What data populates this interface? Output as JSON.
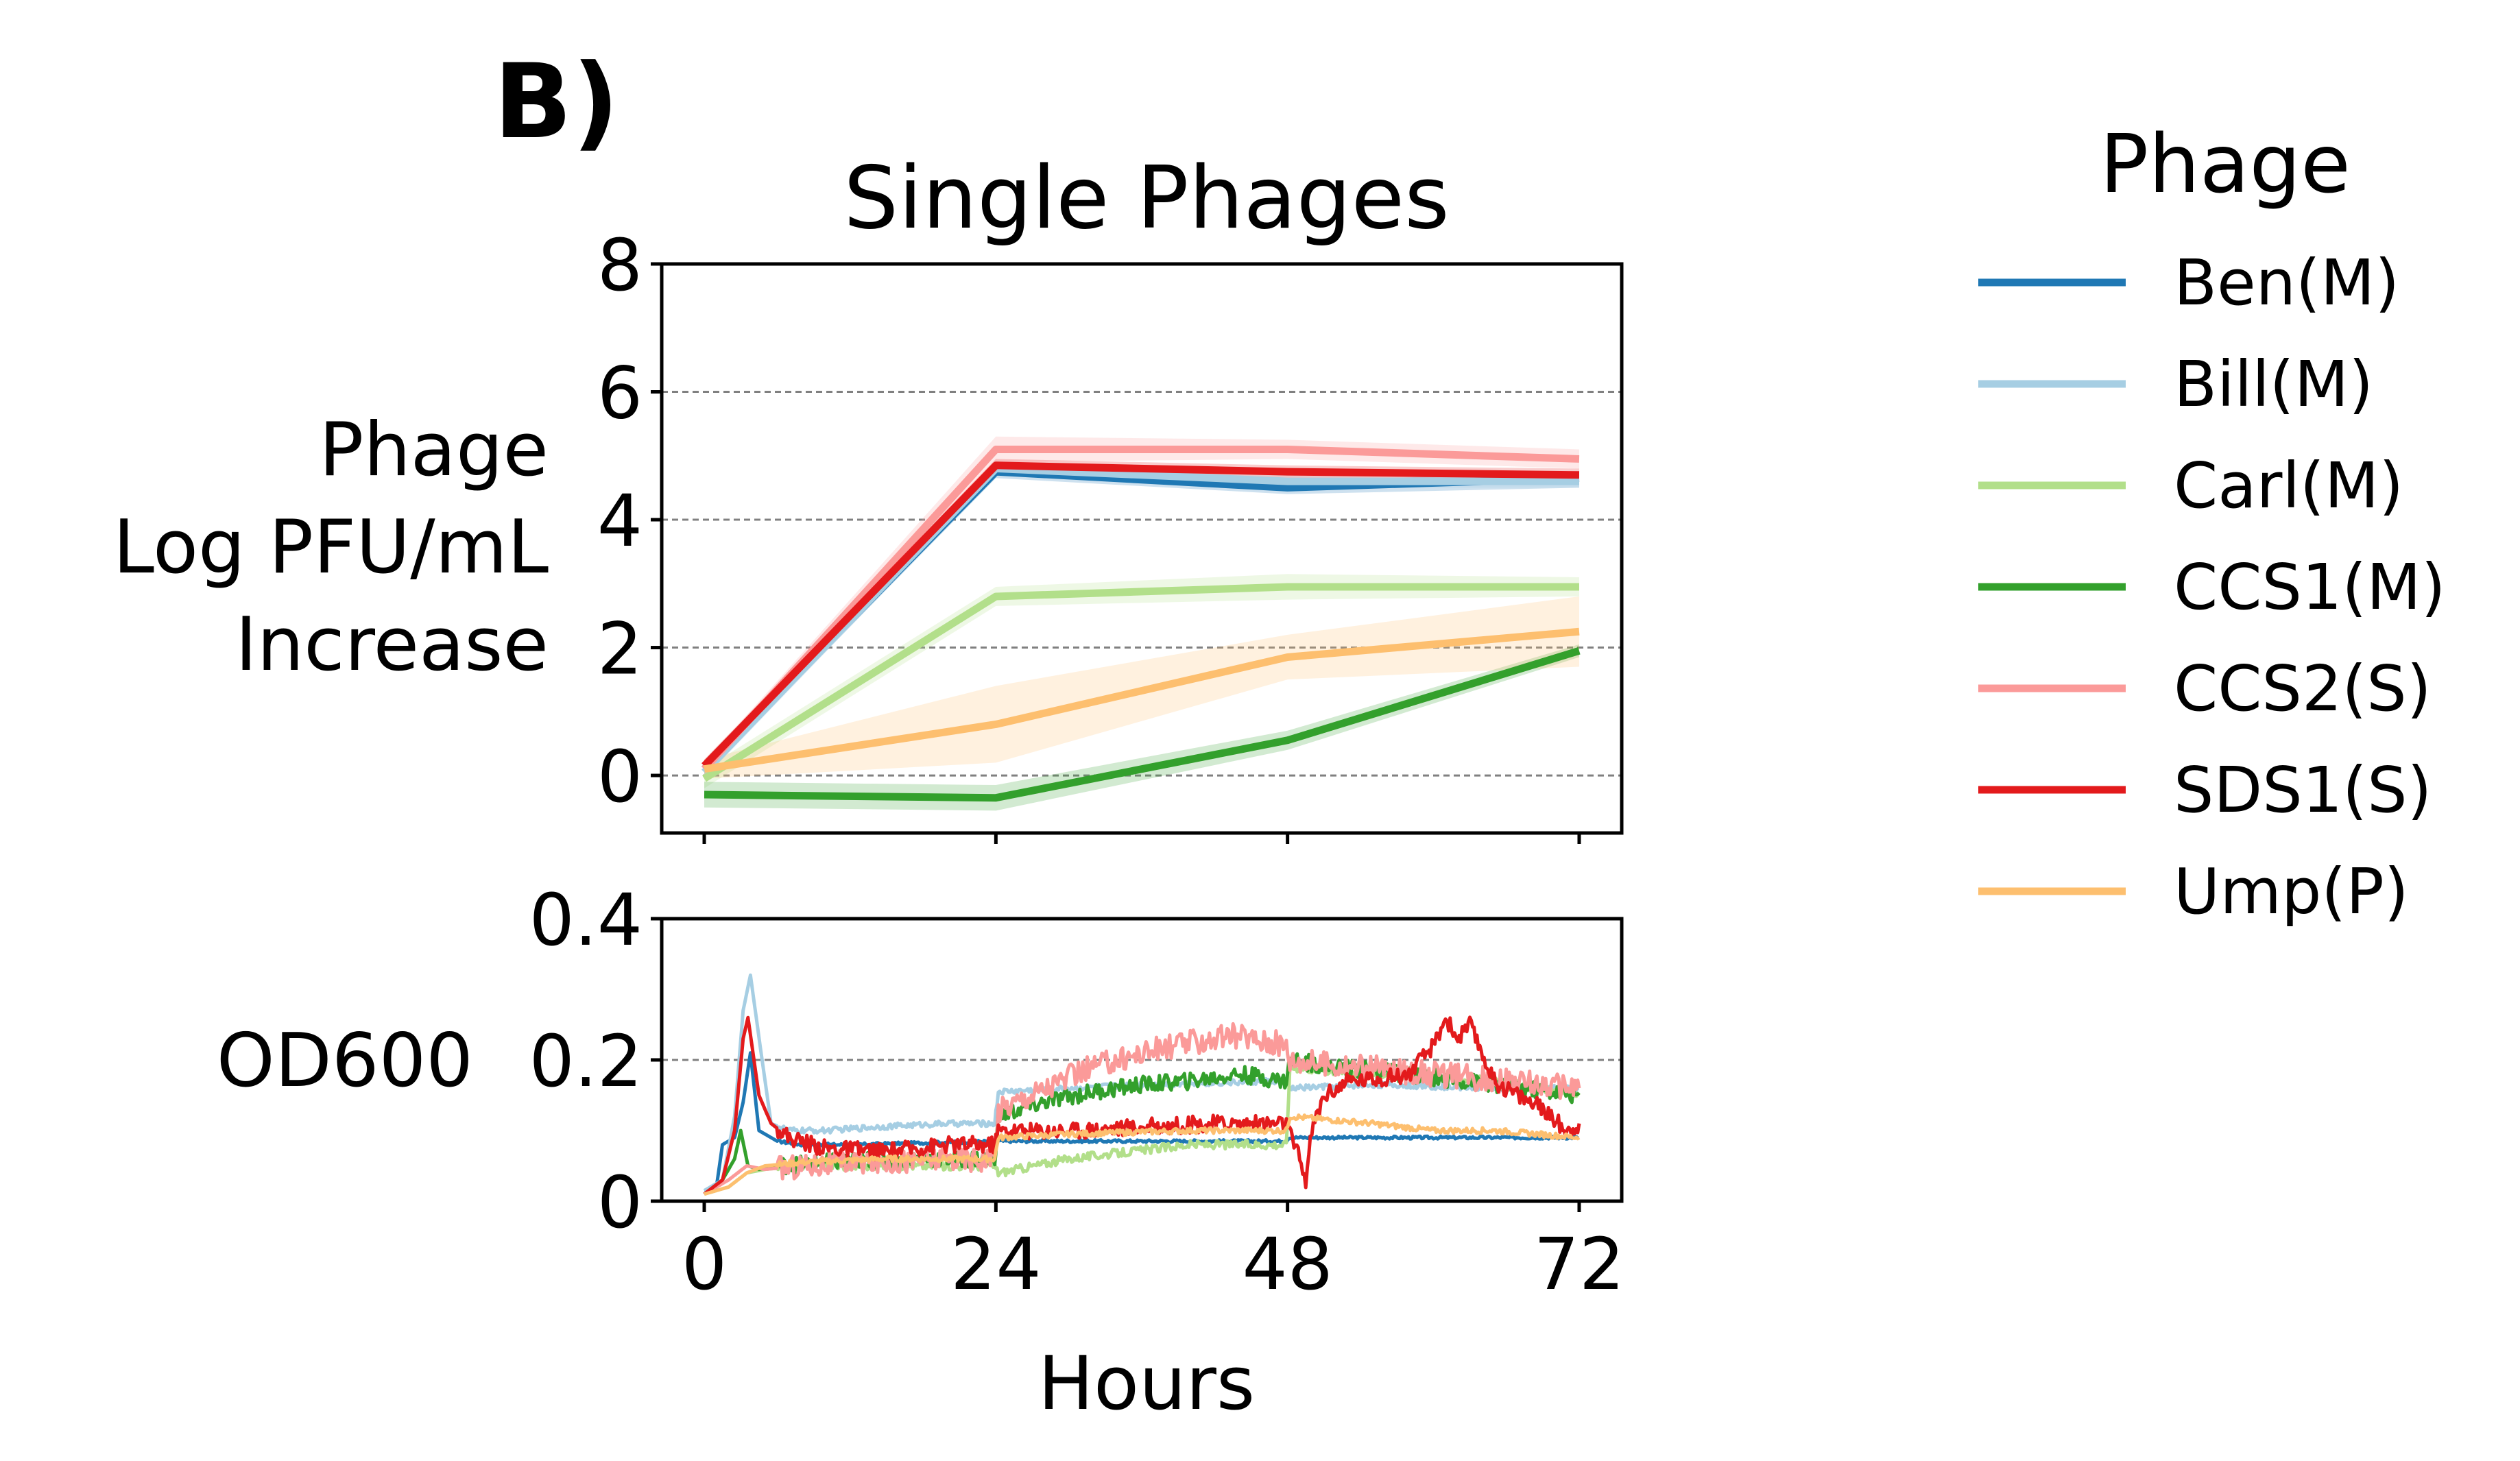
{
  "panel_label": "B)",
  "chart_data": [
    {
      "type": "line",
      "title": "Single Phages",
      "ylabel_lines": [
        "Phage",
        "Log PFU/mL",
        "Increase"
      ],
      "xlabel": "",
      "x": [
        0,
        24,
        48,
        72
      ],
      "xlim": [
        -3.5,
        75.5
      ],
      "ylim": [
        -0.9,
        8
      ],
      "yticks": [
        0,
        2,
        4,
        6,
        8
      ],
      "ytick_labels": [
        "0",
        "2",
        "4",
        "6",
        "8"
      ],
      "grid_lines": [
        0,
        2,
        4,
        6
      ],
      "grid": "horizontal dashed",
      "series": [
        {
          "name": "Ben(M)",
          "color": "#1f78b4",
          "values": [
            0.1,
            4.75,
            4.5,
            4.65
          ],
          "band_lower": [
            0.0,
            4.65,
            4.4,
            4.5
          ],
          "band_upper": [
            0.2,
            4.85,
            4.6,
            4.75
          ]
        },
        {
          "name": "Bill(M)",
          "color": "#a6cee3",
          "values": [
            0.05,
            4.8,
            4.6,
            4.6
          ],
          "band_lower": [
            -0.05,
            4.7,
            4.5,
            4.5
          ],
          "band_upper": [
            0.15,
            4.9,
            4.7,
            4.7
          ]
        },
        {
          "name": "Carl(M)",
          "color": "#b2df8a",
          "values": [
            -0.05,
            2.8,
            2.95,
            2.95
          ],
          "band_lower": [
            -0.2,
            2.65,
            2.75,
            2.8
          ],
          "band_upper": [
            0.1,
            2.95,
            3.15,
            3.1
          ]
        },
        {
          "name": "CCS1(M)",
          "color": "#33a02c",
          "values": [
            -0.3,
            -0.35,
            0.55,
            1.95
          ],
          "band_lower": [
            -0.5,
            -0.55,
            0.4,
            1.85
          ],
          "band_upper": [
            -0.1,
            -0.15,
            0.7,
            2.05
          ]
        },
        {
          "name": "CCS2(S)",
          "color": "#fb9a99",
          "values": [
            0.1,
            5.1,
            5.1,
            4.95
          ],
          "band_lower": [
            0.0,
            4.9,
            4.95,
            4.8
          ],
          "band_upper": [
            0.2,
            5.3,
            5.25,
            5.1
          ]
        },
        {
          "name": "SDS1(S)",
          "color": "#e31a1c",
          "values": [
            0.15,
            4.85,
            4.75,
            4.7
          ],
          "band_lower": [
            0.05,
            4.75,
            4.65,
            4.6
          ],
          "band_upper": [
            0.25,
            4.95,
            4.85,
            4.8
          ]
        },
        {
          "name": "Ump(P)",
          "color": "#fdbf6f",
          "values": [
            0.1,
            0.8,
            1.85,
            2.25
          ],
          "band_lower": [
            -0.05,
            0.2,
            1.5,
            1.7
          ],
          "band_upper": [
            0.25,
            1.4,
            2.2,
            2.8
          ]
        }
      ]
    },
    {
      "type": "line",
      "title": "",
      "ylabel": "OD600",
      "xlabel": "Hours",
      "xlim": [
        -3.5,
        75.5
      ],
      "xticks": [
        0,
        24,
        48,
        72
      ],
      "xtick_labels": [
        "0",
        "24",
        "48",
        "72"
      ],
      "ylim": [
        0,
        0.4
      ],
      "yticks": [
        0,
        0.2,
        0.4
      ],
      "ytick_labels": [
        "0",
        "0.2",
        "0.4"
      ],
      "grid_lines": [
        0.2
      ],
      "grid": "horizontal dashed",
      "series": [
        {
          "name": "Ben(M)",
          "color": "#1f78b4",
          "x": [
            0,
            1,
            1.5,
            2.5,
            3.2,
            3.8,
            4.5,
            6,
            8,
            12,
            24,
            36,
            47.9,
            48.1,
            60,
            72
          ],
          "y": [
            0.015,
            0.02,
            0.08,
            0.09,
            0.14,
            0.21,
            0.1,
            0.085,
            0.08,
            0.08,
            0.085,
            0.085,
            0.085,
            0.09,
            0.09,
            0.09
          ],
          "noise": 0.002
        },
        {
          "name": "Bill(M)",
          "color": "#a6cee3",
          "x": [
            0,
            1.5,
            2.5,
            3.2,
            3.8,
            4.6,
            5.5,
            7,
            10,
            14,
            20,
            23.9,
            24.2,
            30,
            36,
            47.9,
            48.2,
            55,
            65,
            72
          ],
          "y": [
            0.015,
            0.03,
            0.12,
            0.27,
            0.32,
            0.22,
            0.11,
            0.1,
            0.1,
            0.105,
            0.11,
            0.11,
            0.155,
            0.16,
            0.165,
            0.17,
            0.16,
            0.165,
            0.16,
            0.16
          ],
          "noise": 0.004
        },
        {
          "name": "Carl(M)",
          "color": "#b2df8a",
          "x": [
            0,
            2,
            3.5,
            5,
            8,
            15,
            23.9,
            24.2,
            30,
            40,
            47.9,
            48.2,
            55,
            65,
            72
          ],
          "y": [
            0.01,
            0.02,
            0.04,
            0.045,
            0.05,
            0.05,
            0.05,
            0.04,
            0.06,
            0.08,
            0.08,
            0.19,
            0.18,
            0.17,
            0.15
          ],
          "noise": 0.006
        },
        {
          "name": "CCS1(M)",
          "color": "#33a02c",
          "x": [
            0,
            1.5,
            2.5,
            3,
            3.6,
            4.5,
            6,
            10,
            15,
            20,
            23.9,
            24.2,
            28,
            32,
            36,
            40,
            44,
            47.9,
            48.2,
            52,
            58,
            65,
            72
          ],
          "y": [
            0.01,
            0.03,
            0.06,
            0.1,
            0.05,
            0.045,
            0.05,
            0.055,
            0.06,
            0.06,
            0.06,
            0.12,
            0.14,
            0.155,
            0.165,
            0.17,
            0.18,
            0.17,
            0.2,
            0.19,
            0.18,
            0.165,
            0.15
          ],
          "noise": 0.012
        },
        {
          "name": "CCS2(S)",
          "color": "#fb9a99",
          "x": [
            0,
            2,
            3.5,
            5,
            8,
            12,
            20,
            23.9,
            24.2,
            28,
            32,
            36,
            40,
            44,
            47.9,
            48.2,
            54,
            60,
            66,
            72
          ],
          "y": [
            0.01,
            0.03,
            0.05,
            0.045,
            0.05,
            0.055,
            0.06,
            0.06,
            0.13,
            0.16,
            0.19,
            0.21,
            0.225,
            0.235,
            0.22,
            0.2,
            0.19,
            0.18,
            0.17,
            0.16
          ],
          "noise": 0.018
        },
        {
          "name": "SDS1(S)",
          "color": "#e31a1c",
          "x": [
            0,
            1.5,
            2.5,
            3.2,
            3.6,
            4.5,
            5.5,
            7,
            10,
            15,
            20,
            23.9,
            24.2,
            30,
            36,
            42,
            47.9,
            48.3,
            49,
            49.5,
            50,
            51,
            53,
            56,
            58,
            60,
            61,
            62,
            63,
            65,
            67,
            69,
            71,
            72
          ],
          "y": [
            0.01,
            0.03,
            0.1,
            0.23,
            0.26,
            0.15,
            0.11,
            0.09,
            0.075,
            0.07,
            0.08,
            0.08,
            0.1,
            0.1,
            0.105,
            0.11,
            0.11,
            0.09,
            0.06,
            0.03,
            0.1,
            0.15,
            0.17,
            0.175,
            0.18,
            0.22,
            0.26,
            0.23,
            0.25,
            0.17,
            0.15,
            0.13,
            0.1,
            0.11
          ],
          "noise": 0.012
        },
        {
          "name": "Ump(P)",
          "color": "#fdbf6f",
          "x": [
            0,
            2,
            3.5,
            5,
            8,
            15,
            23.9,
            24.2,
            30,
            40,
            47.9,
            48.2,
            55,
            60,
            65,
            72
          ],
          "y": [
            0.01,
            0.02,
            0.04,
            0.05,
            0.055,
            0.06,
            0.06,
            0.09,
            0.095,
            0.1,
            0.1,
            0.12,
            0.11,
            0.1,
            0.1,
            0.09
          ],
          "noise": 0.004
        }
      ]
    }
  ],
  "legend": {
    "title": "Phage",
    "placement": "right, outside",
    "items": [
      {
        "label": "Ben(M)",
        "color": "#1f78b4"
      },
      {
        "label": "Bill(M)",
        "color": "#a6cee3"
      },
      {
        "label": "Carl(M)",
        "color": "#b2df8a"
      },
      {
        "label": "CCS1(M)",
        "color": "#33a02c"
      },
      {
        "label": "CCS2(S)",
        "color": "#fb9a99"
      },
      {
        "label": "SDS1(S)",
        "color": "#e31a1c"
      },
      {
        "label": "Ump(P)",
        "color": "#fdbf6f"
      }
    ]
  }
}
